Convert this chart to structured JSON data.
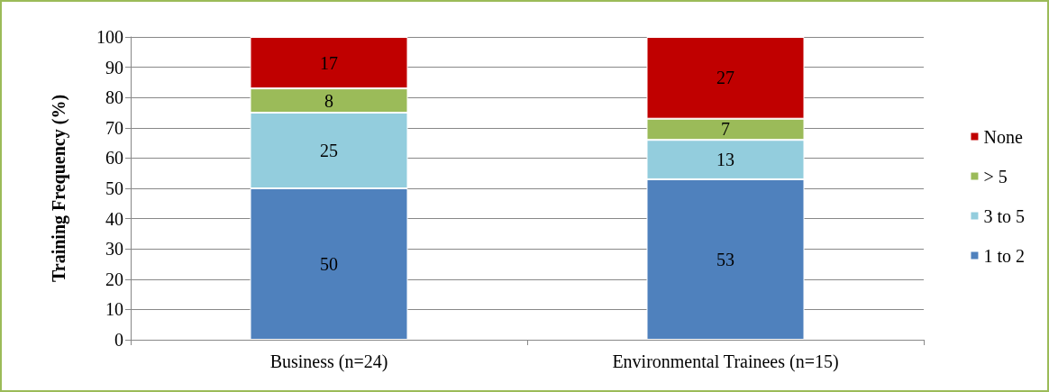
{
  "chart_data": {
    "type": "bar",
    "stacked": true,
    "ylabel": "Training Frequency (%)",
    "categories": [
      "Business (n=24)",
      "Environmental Trainees (n=15)"
    ],
    "series": [
      {
        "name": "1 to 2",
        "color": "#4f81bd",
        "values": [
          50,
          53
        ]
      },
      {
        "name": "3 to 5",
        "color": "#93cddd",
        "values": [
          25,
          13
        ]
      },
      {
        "name": "> 5",
        "color": "#9bbb59",
        "values": [
          8,
          7
        ]
      },
      {
        "name": "None",
        "color": "#c00000",
        "values": [
          17,
          27
        ]
      }
    ],
    "ylim": [
      0,
      100
    ],
    "yticks": [
      0,
      10,
      20,
      30,
      40,
      50,
      60,
      70,
      80,
      90,
      100
    ],
    "grid": "y",
    "legend": "right",
    "data_labels": true
  }
}
